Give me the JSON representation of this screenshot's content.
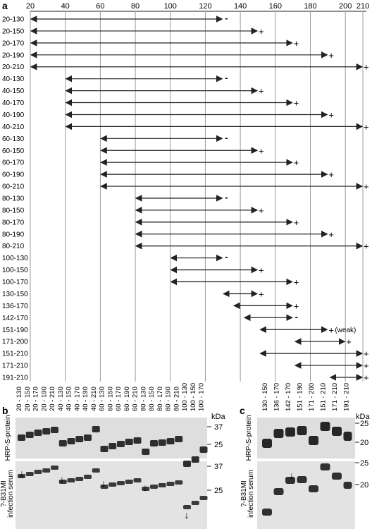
{
  "panel_a": {
    "label": "a",
    "axis_ticks": [
      20,
      40,
      60,
      80,
      100,
      120,
      140,
      160,
      180,
      200,
      210
    ],
    "axis_range": [
      20,
      212
    ],
    "rows": [
      {
        "label": "20-130",
        "start": 20,
        "end": 130,
        "result": "-"
      },
      {
        "label": "20-150",
        "start": 20,
        "end": 150,
        "result": "+"
      },
      {
        "label": "20-170",
        "start": 20,
        "end": 170,
        "result": "+"
      },
      {
        "label": "20-190",
        "start": 20,
        "end": 190,
        "result": "+"
      },
      {
        "label": "20-210",
        "start": 20,
        "end": 210,
        "result": "+"
      },
      {
        "label": "40-130",
        "start": 40,
        "end": 130,
        "result": "-"
      },
      {
        "label": "40-150",
        "start": 40,
        "end": 150,
        "result": "+"
      },
      {
        "label": "40-170",
        "start": 40,
        "end": 170,
        "result": "+"
      },
      {
        "label": "40-190",
        "start": 40,
        "end": 190,
        "result": "+"
      },
      {
        "label": "40-210",
        "start": 40,
        "end": 210,
        "result": "+"
      },
      {
        "label": "60-130",
        "start": 60,
        "end": 130,
        "result": "-"
      },
      {
        "label": "60-150",
        "start": 60,
        "end": 150,
        "result": "+"
      },
      {
        "label": "60-170",
        "start": 60,
        "end": 170,
        "result": "+"
      },
      {
        "label": "60-190",
        "start": 60,
        "end": 190,
        "result": "+"
      },
      {
        "label": "60-210",
        "start": 60,
        "end": 210,
        "result": "+"
      },
      {
        "label": "80-130",
        "start": 80,
        "end": 130,
        "result": "-"
      },
      {
        "label": "80-150",
        "start": 80,
        "end": 150,
        "result": "+"
      },
      {
        "label": "80-170",
        "start": 80,
        "end": 170,
        "result": "+"
      },
      {
        "label": "80-190",
        "start": 80,
        "end": 190,
        "result": "+"
      },
      {
        "label": "80-210",
        "start": 80,
        "end": 210,
        "result": "+"
      },
      {
        "label": "100-130",
        "start": 100,
        "end": 130,
        "result": "-"
      },
      {
        "label": "100-150",
        "start": 100,
        "end": 150,
        "result": "+"
      },
      {
        "label": "100-170",
        "start": 100,
        "end": 170,
        "result": "+"
      },
      {
        "label": "130-150",
        "start": 130,
        "end": 150,
        "result": "+"
      },
      {
        "label": "136-170",
        "start": 136,
        "end": 170,
        "result": "+"
      },
      {
        "label": "142-170",
        "start": 142,
        "end": 170,
        "result": "-"
      },
      {
        "label": "151-190",
        "start": 151,
        "end": 190,
        "result": "+",
        "note": "(weak)"
      },
      {
        "label": "171-200",
        "start": 171,
        "end": 200,
        "result": "+"
      },
      {
        "label": "151-210",
        "start": 151,
        "end": 210,
        "result": "+"
      },
      {
        "label": "171-210",
        "start": 171,
        "end": 210,
        "result": "+"
      },
      {
        "label": "191-210",
        "start": 191,
        "end": 210,
        "result": "+"
      }
    ]
  },
  "panel_b": {
    "label": "b",
    "lanes": [
      "20 - 130",
      "20 - 150",
      "20 - 170",
      "20 - 190",
      "20 - 210",
      "40 - 130",
      "40 - 150",
      "40 - 170",
      "40 - 190",
      "40 - 210",
      "60 - 130",
      "60 - 150",
      "60 - 170",
      "60 - 190",
      "60 - 210",
      "80 - 130",
      "80 - 150",
      "80 - 170",
      "80 - 190",
      "80 - 210",
      "100 - 130",
      "100 - 150",
      "100 - 170"
    ],
    "unit": "kDa",
    "top_blot_label": "HRP-S-protein",
    "top_markers": [
      "37",
      "25"
    ],
    "bottom_blot_label_line1": "?-B31MI",
    "bottom_blot_label_line2": "infection serum",
    "bottom_markers": [
      "37",
      "25"
    ],
    "arrow_glyph": "↓"
  },
  "panel_c": {
    "label": "c",
    "lanes": [
      "130 - 150",
      "136 - 170",
      "142 - 170",
      "151 - 190",
      "171 - 200",
      "151 - 210",
      "171 - 210",
      "191 - 210"
    ],
    "unit": "kDa",
    "top_blot_label": "HRP-S-protein",
    "top_markers": [
      "25",
      "20"
    ],
    "bottom_blot_label_line1": "?-B31MI",
    "bottom_blot_label_line2": "infection serum",
    "bottom_markers": [
      "25",
      "20"
    ],
    "arrow_glyph": "↓"
  }
}
